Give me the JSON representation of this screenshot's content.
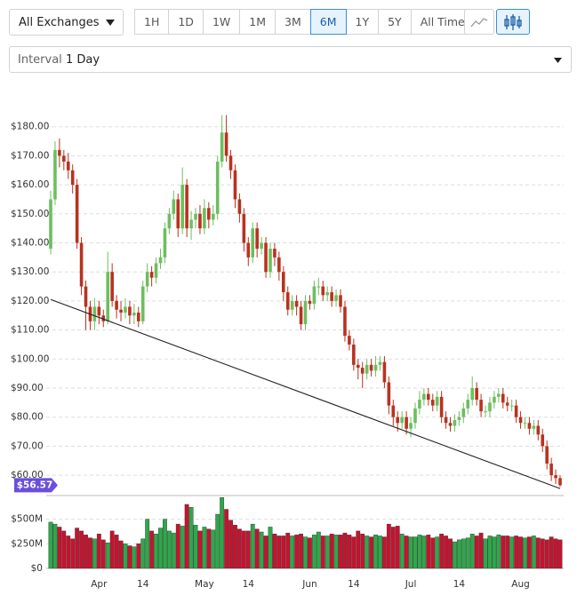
{
  "toolbar": {
    "exchange": "All Exchanges",
    "ranges": [
      "1H",
      "1D",
      "1W",
      "1M",
      "3M",
      "6M",
      "1Y",
      "5Y",
      "All Time"
    ],
    "active_range": "6M",
    "interval_label": "Interval",
    "interval_value": "1 Day"
  },
  "chart_data": {
    "type": "candlestick",
    "categories": [
      null,
      null,
      null,
      null,
      null,
      null,
      null,
      null,
      null,
      null,
      null,
      "Apr",
      null,
      null,
      null,
      null,
      null,
      null,
      null,
      null,
      null,
      "14",
      null,
      null,
      null,
      null,
      null,
      null,
      null,
      null,
      null,
      null,
      null,
      null,
      null,
      "May",
      null,
      null,
      null,
      null,
      null,
      null,
      null,
      null,
      null,
      "14",
      null,
      null,
      null,
      null,
      null,
      null,
      null,
      null,
      null,
      null,
      null,
      null,
      null,
      "Jun",
      null,
      null,
      null,
      null,
      null,
      null,
      null,
      null,
      null,
      "14",
      null,
      null,
      null,
      null,
      null,
      null,
      null,
      null,
      null,
      null,
      null,
      null,
      "Jul",
      null,
      null,
      null,
      null,
      null,
      null,
      null,
      null,
      null,
      null,
      "14",
      null,
      null,
      null,
      null,
      null,
      null,
      null,
      null,
      null,
      null,
      null,
      null,
      null,
      "Aug",
      null,
      null,
      null,
      null,
      null,
      null,
      null,
      null,
      null
    ],
    "open": [
      138,
      155,
      172,
      170,
      168,
      165,
      160,
      140,
      125,
      118,
      113,
      118,
      115,
      113,
      130,
      120,
      117,
      116,
      118,
      115,
      116,
      113,
      125,
      130,
      128,
      133,
      135,
      145,
      150,
      155,
      145,
      160,
      145,
      148,
      150,
      145,
      152,
      148,
      150,
      168,
      178,
      170,
      165,
      155,
      150,
      140,
      135,
      145,
      138,
      140,
      130,
      138,
      135,
      130,
      123,
      117,
      120,
      118,
      112,
      120,
      119,
      125,
      125,
      122,
      123,
      120,
      122,
      118,
      108,
      105,
      98,
      97,
      95,
      98,
      96,
      98,
      99,
      92,
      84,
      80,
      78,
      80,
      76,
      78,
      83,
      86,
      88,
      86,
      84,
      87,
      80,
      78,
      77,
      79,
      80,
      83,
      86,
      90,
      86,
      82,
      82,
      85,
      87,
      88,
      85,
      84,
      84,
      80,
      78,
      78,
      76,
      77,
      74,
      70,
      64,
      60,
      59
    ],
    "high": [
      158,
      175,
      176,
      172,
      171,
      167,
      162,
      142,
      127,
      120,
      121,
      120,
      117,
      137,
      133,
      122,
      120,
      121,
      120,
      119,
      118,
      127,
      133,
      132,
      135,
      138,
      147,
      152,
      158,
      157,
      166,
      162,
      151,
      152,
      153,
      155,
      154,
      153,
      170,
      184,
      184,
      172,
      167,
      157,
      152,
      142,
      147,
      147,
      142,
      142,
      140,
      140,
      137,
      132,
      125,
      122,
      122,
      120,
      122,
      122,
      127,
      128,
      127,
      125,
      125,
      124,
      124,
      120,
      110,
      107,
      100,
      99,
      100,
      100,
      101,
      101,
      101,
      94,
      86,
      82,
      82,
      82,
      80,
      85,
      89,
      90,
      90,
      88,
      89,
      89,
      82,
      80,
      81,
      82,
      85,
      88,
      94,
      92,
      88,
      84,
      87,
      89,
      90,
      90,
      87,
      86,
      86,
      82,
      80,
      80,
      79,
      79,
      76,
      72,
      66,
      62,
      60
    ],
    "low": [
      136,
      153,
      166,
      165,
      162,
      157,
      138,
      122,
      110,
      110,
      110,
      112,
      111,
      112,
      118,
      114,
      113,
      114,
      112,
      112,
      111,
      112,
      123,
      125,
      126,
      131,
      133,
      143,
      148,
      142,
      143,
      142,
      141,
      145,
      143,
      143,
      145,
      146,
      148,
      166,
      168,
      162,
      152,
      147,
      137,
      132,
      133,
      135,
      136,
      128,
      128,
      132,
      127,
      120,
      115,
      115,
      115,
      110,
      110,
      117,
      117,
      122,
      120,
      120,
      118,
      118,
      116,
      106,
      103,
      96,
      93,
      90,
      93,
      94,
      94,
      96,
      90,
      81,
      77,
      75,
      76,
      74,
      73,
      76,
      81,
      84,
      84,
      82,
      82,
      78,
      76,
      75,
      75,
      77,
      78,
      81,
      84,
      84,
      80,
      80,
      80,
      83,
      85,
      83,
      82,
      82,
      78,
      76,
      76,
      74,
      74,
      72,
      68,
      62,
      58,
      57,
      56
    ],
    "close": [
      155,
      172,
      170,
      168,
      165,
      160,
      140,
      125,
      118,
      113,
      118,
      115,
      113,
      130,
      120,
      117,
      116,
      118,
      115,
      116,
      113,
      125,
      130,
      128,
      133,
      135,
      145,
      150,
      155,
      145,
      160,
      145,
      148,
      150,
      145,
      152,
      148,
      150,
      168,
      178,
      170,
      165,
      155,
      150,
      140,
      135,
      145,
      138,
      140,
      130,
      138,
      135,
      130,
      123,
      117,
      120,
      118,
      112,
      120,
      119,
      125,
      125,
      122,
      123,
      120,
      122,
      118,
      108,
      105,
      98,
      97,
      95,
      98,
      96,
      98,
      99,
      92,
      84,
      80,
      78,
      80,
      76,
      78,
      83,
      86,
      88,
      86,
      84,
      87,
      80,
      78,
      77,
      79,
      80,
      83,
      86,
      90,
      86,
      82,
      82,
      85,
      87,
      88,
      85,
      84,
      84,
      80,
      78,
      78,
      76,
      77,
      74,
      70,
      64,
      60,
      59,
      56.57
    ],
    "up_color": "#6cbf5f",
    "down_color": "#b8321f",
    "ylim": [
      53,
      190
    ],
    "yticks": [
      {
        "value": 60,
        "label": "$60.00"
      },
      {
        "value": 70,
        "label": "$70.00"
      },
      {
        "value": 80,
        "label": "$80.00"
      },
      {
        "value": 90,
        "label": "$90.00"
      },
      {
        "value": 100,
        "label": "$100.00"
      },
      {
        "value": 110,
        "label": "$110.00"
      },
      {
        "value": 120,
        "label": "$120.00"
      },
      {
        "value": 130,
        "label": "$130.00"
      },
      {
        "value": 140,
        "label": "$140.00"
      },
      {
        "value": 150,
        "label": "$150.00"
      },
      {
        "value": 160,
        "label": "$160.00"
      },
      {
        "value": 170,
        "label": "$170.00"
      },
      {
        "value": 180,
        "label": "$180.00"
      }
    ],
    "grid": true,
    "price_tag": {
      "value": 56.57,
      "label": "$56.57"
    },
    "price_tag_color": "#6a4fdc",
    "trendline": [
      120.5,
      55.4
    ],
    "trendline_color": "#222222",
    "volume": {
      "up_color": "#2ea84a",
      "down_color": "#c8122e",
      "ylim": [
        0,
        740
      ],
      "yticks": [
        {
          "value": 0,
          "label": "$0"
        },
        {
          "value": 250,
          "label": "$250M"
        },
        {
          "value": 500,
          "label": "$500M"
        }
      ],
      "values": [
        470,
        450,
        420,
        380,
        330,
        300,
        410,
        380,
        340,
        310,
        300,
        350,
        290,
        260,
        380,
        340,
        280,
        250,
        230,
        220,
        250,
        300,
        500,
        380,
        350,
        410,
        500,
        380,
        360,
        450,
        430,
        650,
        620,
        440,
        380,
        420,
        400,
        390,
        550,
        720,
        600,
        490,
        440,
        400,
        380,
        380,
        450,
        400,
        370,
        330,
        420,
        350,
        330,
        330,
        360,
        330,
        340,
        350,
        320,
        310,
        340,
        370,
        330,
        330,
        350,
        340,
        340,
        360,
        340,
        320,
        380,
        350,
        330,
        320,
        340,
        330,
        320,
        450,
        420,
        430,
        350,
        330,
        320,
        320,
        340,
        330,
        340,
        310,
        320,
        350,
        330,
        300,
        270,
        290,
        300,
        310,
        350,
        330,
        360,
        300,
        330,
        320,
        340,
        330,
        330,
        320,
        330,
        320,
        310,
        320,
        330,
        310,
        300,
        290,
        320,
        300,
        290
      ]
    }
  }
}
